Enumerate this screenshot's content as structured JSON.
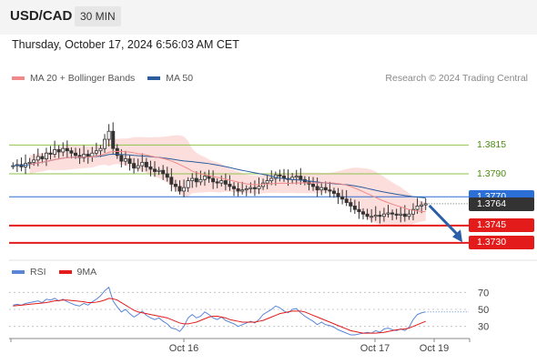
{
  "header": {
    "symbol": "USD/CAD",
    "timeframe": "30 MIN"
  },
  "datetime": "Thursday, October 17, 2024 6:56:03 AM CET",
  "legend": {
    "ma20": {
      "label": "MA 20 + Bollinger Bands",
      "color": "#f08a8a"
    },
    "ma50": {
      "label": "MA 50",
      "color": "#2c5d9c"
    }
  },
  "credit": "Research © 2024 Trading Central",
  "rsi_legend": {
    "rsi": {
      "label": "RSI",
      "color": "#5b86d6"
    },
    "ma": {
      "label": "9MA",
      "color": "#e31b1b"
    }
  },
  "chart_data": [
    {
      "type": "candlestick",
      "ylim": [
        1.3718,
        1.3862
      ],
      "levels": [
        {
          "value": 1.3815,
          "label": "1.3815",
          "kind": "resistance",
          "color": "#92c24b",
          "text_color": "#4d8a12"
        },
        {
          "value": 1.379,
          "label": "1.3790",
          "kind": "resistance",
          "color": "#92c24b",
          "text_color": "#4d8a12"
        },
        {
          "value": 1.377,
          "label": "1.3770",
          "kind": "pivot",
          "color": "#2c6fd6",
          "text_color": "#ffffff"
        },
        {
          "value": 1.3745,
          "label": "1.3745",
          "kind": "support",
          "color": "#e31b1b",
          "text_color": "#ffffff"
        },
        {
          "value": 1.373,
          "label": "1.3730",
          "kind": "support",
          "color": "#e31b1b",
          "text_color": "#ffffff"
        }
      ],
      "last_price": {
        "value": 1.3764,
        "label": "1.3764",
        "color": "#333333"
      },
      "x_ticks": [
        "Oct 16",
        "Oct 17",
        "Oct 19"
      ],
      "closes": [
        1.3797,
        1.3798,
        1.3796,
        1.3799,
        1.38,
        1.3802,
        1.3805,
        1.3803,
        1.3808,
        1.3807,
        1.3811,
        1.3809,
        1.3812,
        1.381,
        1.3808,
        1.3806,
        1.3804,
        1.3807,
        1.3805,
        1.3808,
        1.381,
        1.3812,
        1.382,
        1.3827,
        1.3812,
        1.3806,
        1.3801,
        1.3803,
        1.3799,
        1.3795,
        1.3797,
        1.38,
        1.3796,
        1.3794,
        1.3792,
        1.3793,
        1.379,
        1.3787,
        1.3781,
        1.3779,
        1.3775,
        1.3778,
        1.3784,
        1.3786,
        1.3783,
        1.3785,
        1.3788,
        1.3786,
        1.3783,
        1.3782,
        1.3784,
        1.3781,
        1.3779,
        1.3777,
        1.3775,
        1.3776,
        1.3777,
        1.3778,
        1.3777,
        1.3779,
        1.3782,
        1.3784,
        1.3786,
        1.3789,
        1.3788,
        1.3786,
        1.3785,
        1.3787,
        1.3788,
        1.3785,
        1.3783,
        1.3781,
        1.3779,
        1.3776,
        1.3778,
        1.3776,
        1.3775,
        1.3773,
        1.377,
        1.3768,
        1.3765,
        1.3762,
        1.3759,
        1.3757,
        1.3755,
        1.3753,
        1.3753,
        1.3754,
        1.3753,
        1.3755,
        1.3756,
        1.3755,
        1.3754,
        1.3755,
        1.3753,
        1.3755,
        1.3759,
        1.3762,
        1.3763,
        1.3764
      ]
    },
    {
      "type": "line",
      "ylim": [
        20,
        80
      ],
      "y_ticks": [
        70,
        50,
        30
      ],
      "series": [
        {
          "name": "RSI",
          "values": [
            55,
            56,
            55,
            57,
            58,
            59,
            60,
            58,
            62,
            61,
            63,
            60,
            62,
            59,
            57,
            55,
            54,
            57,
            55,
            59,
            62,
            66,
            72,
            76,
            60,
            53,
            47,
            50,
            45,
            41,
            44,
            48,
            43,
            40,
            38,
            40,
            36,
            33,
            28,
            27,
            24,
            30,
            40,
            44,
            40,
            42,
            47,
            44,
            40,
            38,
            41,
            37,
            35,
            33,
            30,
            32,
            34,
            36,
            34,
            38,
            44,
            47,
            50,
            54,
            52,
            48,
            46,
            50,
            51,
            46,
            42,
            39,
            36,
            32,
            35,
            32,
            31,
            29,
            26,
            24,
            22,
            20,
            20,
            21,
            22,
            23,
            22,
            25,
            23,
            27,
            28,
            26,
            25,
            27,
            25,
            29,
            38,
            44,
            46,
            47
          ]
        },
        {
          "name": "9MA",
          "values": [
            54,
            54.5,
            55,
            55.5,
            56,
            56.5,
            57,
            57.5,
            58,
            59,
            60,
            60.5,
            61,
            61,
            60.5,
            60,
            59.5,
            59,
            58,
            58,
            58.5,
            59.5,
            61,
            63,
            62.5,
            61,
            58,
            55,
            52,
            49,
            47,
            46,
            45,
            44,
            43,
            42,
            41,
            40,
            38,
            36,
            34,
            33,
            33,
            34,
            35,
            37,
            39,
            41,
            42,
            42,
            41,
            40,
            38,
            37,
            36,
            35,
            35,
            35,
            35,
            36,
            37,
            39,
            41,
            43,
            45,
            46,
            47,
            48,
            48,
            48,
            47,
            45,
            43,
            41,
            39,
            37,
            35,
            33,
            31,
            29,
            27,
            25,
            24,
            23,
            22,
            22,
            22,
            22,
            22.5,
            23,
            24,
            25,
            26,
            26.5,
            27,
            28,
            30,
            32,
            34,
            36
          ]
        }
      ]
    }
  ]
}
